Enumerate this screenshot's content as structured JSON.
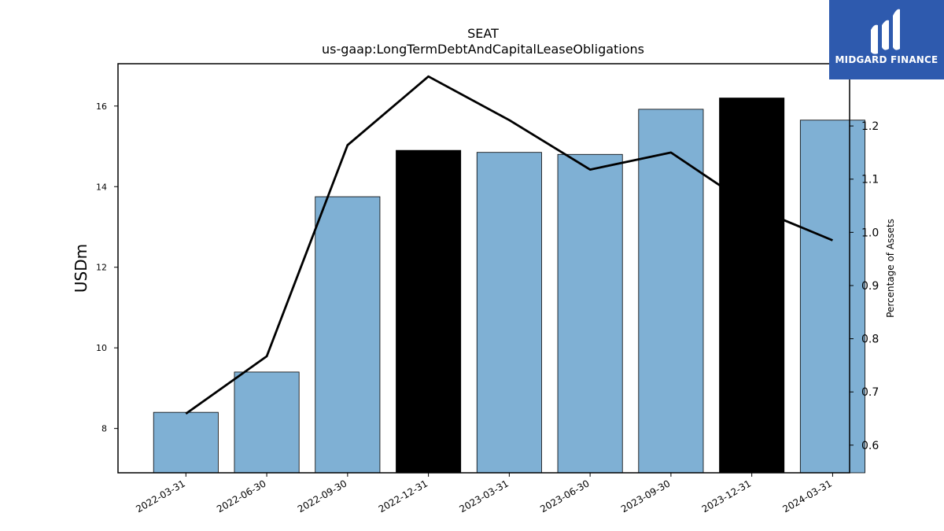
{
  "chart_data": {
    "type": "bar",
    "title": "SEAT",
    "subtitle": "us-gaap:LongTermDebtAndCapitalLeaseObligations",
    "categories": [
      "2022-03-31",
      "2022-06-30",
      "2022-09-30",
      "2022-12-31",
      "2023-03-31",
      "2023-06-30",
      "2023-09-30",
      "2023-12-31",
      "2024-03-31"
    ],
    "series": [
      {
        "axis": "left",
        "type": "bar",
        "values": [
          8.4,
          9.4,
          13.75,
          14.9,
          14.85,
          14.8,
          15.92,
          16.2,
          15.65
        ],
        "colors": [
          "#7fb0d4",
          "#7fb0d4",
          "#7fb0d4",
          "#000000",
          "#7fb0d4",
          "#7fb0d4",
          "#7fb0d4",
          "#000000",
          "#7fb0d4"
        ]
      },
      {
        "axis": "right",
        "type": "line",
        "color": "#000000",
        "values": [
          0.659,
          0.767,
          1.164,
          1.293,
          1.211,
          1.118,
          1.15,
          1.048,
          0.985
        ]
      }
    ],
    "ylabel": "USDm",
    "ylabel_right": "Percentage of Assets",
    "ylim": [
      6.9,
      17.05
    ],
    "ylim_right": [
      0.548,
      1.317
    ],
    "yticks": [
      8,
      10,
      12,
      14,
      16
    ],
    "yticks_right": [
      0.6,
      0.7,
      0.8,
      0.9,
      1.0,
      1.1,
      1.2
    ],
    "grid": false
  },
  "brand": {
    "name": "MIDGARD FINANCE",
    "logo_icon": "midgard-m-logo-icon",
    "background": "#2e5aae"
  }
}
